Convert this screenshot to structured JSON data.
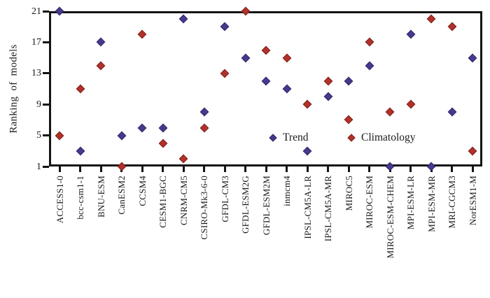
{
  "figure": {
    "background": "#ffffff",
    "frame_color": "#141414",
    "text_color": "#1a1a1a"
  },
  "chart_data": {
    "type": "scatter",
    "title": "",
    "xlabel": "",
    "ylabel": "Ranking of models",
    "ylim": [
      1,
      21
    ],
    "yticks": [
      1,
      5,
      9,
      13,
      17,
      21
    ],
    "grid": false,
    "legend_position": "inside-bottom-center",
    "marker": "diamond",
    "categories": [
      "ACCESS1-0",
      "bcc-csm1-1",
      "BNU-ESM",
      "CanESM2",
      "CCSM4",
      "CESM1-BGC",
      "CNRM-CM5",
      "CSIRO-Mk3-6-0",
      "GFDL-CM3",
      "GFDL-ESM2G",
      "GFDL-ESM2M",
      "inmcm4",
      "IPSL-CM5A-LR",
      "IPSL-CM5A-MR",
      "MIROC5",
      "MIROC-ESM",
      "MIROC-ESM-CHEM",
      "MPI-ESM-LR",
      "MPI-ESM-MR",
      "MRI-CGCM3",
      "NorESM1-M"
    ],
    "series": [
      {
        "name": "Trend",
        "color": "#453a8d",
        "edge": "#2e2768",
        "values": [
          21,
          3,
          17,
          5,
          6,
          6,
          20,
          8,
          19,
          15,
          12,
          11,
          3,
          10,
          12,
          14,
          1,
          18,
          1,
          8,
          15
        ]
      },
      {
        "name": "Climatology",
        "color": "#b1312b",
        "edge": "#7e201c",
        "values": [
          5,
          11,
          14,
          1,
          18,
          4,
          2,
          6,
          13,
          21,
          16,
          15,
          9,
          12,
          7,
          17,
          8,
          9,
          20,
          19,
          3
        ]
      }
    ]
  }
}
